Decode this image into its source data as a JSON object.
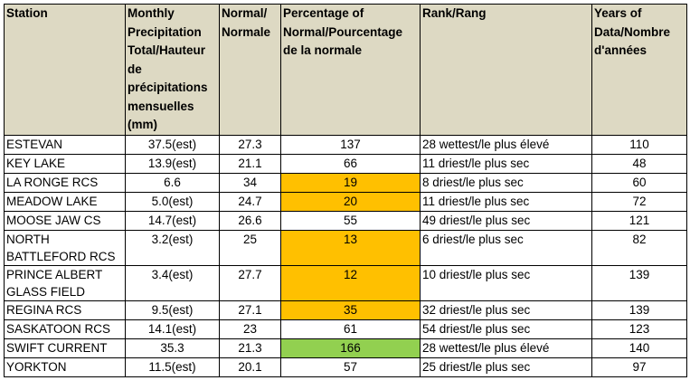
{
  "headers": [
    "Station",
    "Monthly Precipitation Total/Hauteur de précipitations mensuelles (mm)",
    "Normal/ Normale",
    "Percentage of Normal/Pourcentage de la normale",
    "Rank/Rang",
    "Years of Data/Nombre d'années"
  ],
  "rows": [
    {
      "station": "ESTEVAN",
      "total": "37.5(est)",
      "normal": "27.3",
      "percent": "137",
      "rank": "28 wettest/le plus élevé",
      "years": "110",
      "highlight": ""
    },
    {
      "station": "KEY LAKE",
      "total": "13.9(est)",
      "normal": "21.1",
      "percent": "66",
      "rank": "11 driest/le plus sec",
      "years": "48",
      "highlight": ""
    },
    {
      "station": "LA RONGE RCS",
      "total": "6.6",
      "normal": "34",
      "percent": "19",
      "rank": "8 driest/le plus sec",
      "years": "60",
      "highlight": "#ffc000"
    },
    {
      "station": "MEADOW LAKE",
      "total": "5.0(est)",
      "normal": "24.7",
      "percent": "20",
      "rank": "11 driest/le plus sec",
      "years": "72",
      "highlight": "#ffc000"
    },
    {
      "station": "MOOSE JAW CS",
      "total": "14.7(est)",
      "normal": "26.6",
      "percent": "55",
      "rank": "49 driest/le plus sec",
      "years": "121",
      "highlight": ""
    },
    {
      "station": "NORTH BATTLEFORD RCS",
      "total": "3.2(est)",
      "normal": "25",
      "percent": "13",
      "rank": "6 driest/le plus sec",
      "years": "82",
      "highlight": "#ffc000",
      "tall": true
    },
    {
      "station": "PRINCE ALBERT GLASS FIELD",
      "total": "3.4(est)",
      "normal": "27.7",
      "percent": "12",
      "rank": "10 driest/le plus sec",
      "years": "139",
      "highlight": "#ffc000",
      "tall": true
    },
    {
      "station": "REGINA RCS",
      "total": "9.5(est)",
      "normal": "27.1",
      "percent": "35",
      "rank": "32 driest/le plus sec",
      "years": "139",
      "highlight": "#ffc000"
    },
    {
      "station": "SASKATOON RCS",
      "total": "14.1(est)",
      "normal": "23",
      "percent": "61",
      "rank": "54 driest/le plus sec",
      "years": "123",
      "highlight": ""
    },
    {
      "station": "SWIFT CURRENT",
      "total": "35.3",
      "normal": "21.3",
      "percent": "166",
      "rank": "28 wettest/le plus élevé",
      "years": "140",
      "highlight": "#92d050"
    },
    {
      "station": "YORKTON",
      "total": "11.5(est)",
      "normal": "20.1",
      "percent": "57",
      "rank": "25 driest/le plus sec",
      "years": "97",
      "highlight": ""
    }
  ]
}
